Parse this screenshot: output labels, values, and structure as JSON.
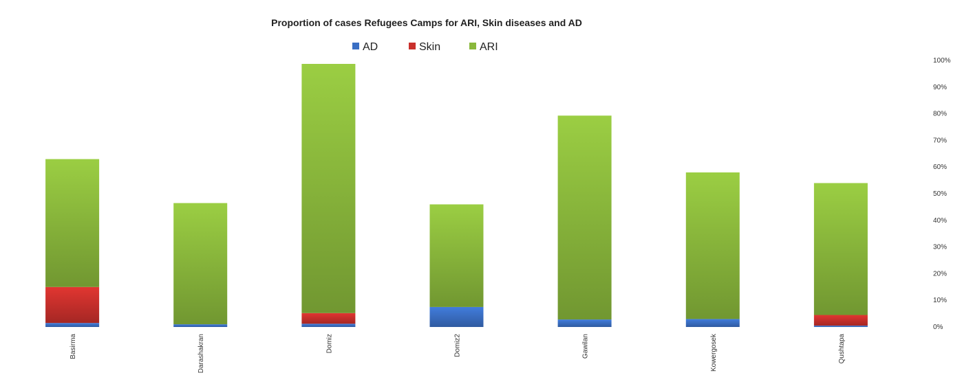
{
  "chart_data": {
    "type": "bar",
    "stacked": true,
    "title": "Proportion of cases Refugees Camps for ARI, Skin diseases and AD",
    "categories": [
      "Basirma",
      "Darashakran",
      "Domiz",
      "Domiz2",
      "Gawilan",
      "Kowergosek",
      "Qushtapa"
    ],
    "series": [
      {
        "name": "AD",
        "color": "#3a6fc4",
        "values": [
          1.5,
          1.0,
          1.2,
          7.5,
          2.8,
          3.0,
          0.5
        ]
      },
      {
        "name": "Skin",
        "color": "#c9302c",
        "values": [
          13.5,
          0.0,
          4.0,
          0.0,
          0.0,
          0.0,
          4.0
        ]
      },
      {
        "name": "ARI",
        "color": "#8ab83c",
        "values": [
          48.0,
          45.5,
          93.5,
          38.5,
          76.5,
          55.0,
          49.5
        ]
      }
    ],
    "y_axis": {
      "position": "right",
      "min": 0,
      "max": 100,
      "step": 10,
      "tick_labels": [
        "0%",
        "10%",
        "20%",
        "30%",
        "40%",
        "50%",
        "60%",
        "70%",
        "80%",
        "90%",
        "100%"
      ]
    },
    "xlabel": "",
    "ylabel": "",
    "grid": false,
    "legend_position": "top-center"
  }
}
